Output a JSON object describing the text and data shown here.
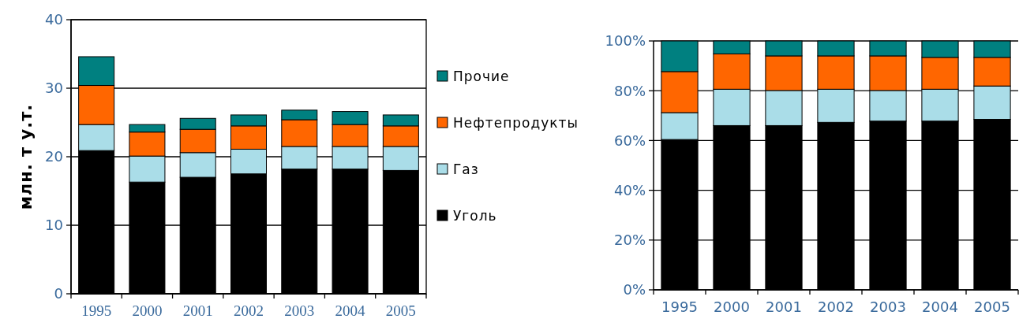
{
  "chart_data": [
    {
      "type": "bar",
      "stacked": true,
      "ylabel": "млн. т у.т.",
      "categories": [
        "1995",
        "2000",
        "2001",
        "2002",
        "2003",
        "2004",
        "2005"
      ],
      "ylim": [
        0,
        40
      ],
      "yticks": [
        0,
        10,
        20,
        30,
        40
      ],
      "grid": "y",
      "legend": "right",
      "series": [
        {
          "name": "Уголь",
          "color": "#000000",
          "values": [
            20.9,
            16.3,
            17.0,
            17.5,
            18.2,
            18.2,
            18.0
          ]
        },
        {
          "name": "Газ",
          "color": "#aadde8",
          "values": [
            3.8,
            3.8,
            3.6,
            3.6,
            3.3,
            3.3,
            3.5
          ]
        },
        {
          "name": "Нефтепродукты",
          "color": "#ff6600",
          "values": [
            5.7,
            3.5,
            3.4,
            3.4,
            3.9,
            3.2,
            3.0
          ]
        },
        {
          "name": "Прочие",
          "color": "#008080",
          "values": [
            4.2,
            1.1,
            1.6,
            1.6,
            1.4,
            1.9,
            1.6
          ]
        }
      ]
    },
    {
      "type": "bar",
      "stacked": true,
      "categories": [
        "1995",
        "2000",
        "2001",
        "2002",
        "2003",
        "2004",
        "2005"
      ],
      "ylim": [
        0,
        100
      ],
      "yticks": [
        {
          "value": 0,
          "label": "0%"
        },
        {
          "value": 20,
          "label": "20%"
        },
        {
          "value": 40,
          "label": "40%"
        },
        {
          "value": 60,
          "label": "60%"
        },
        {
          "value": 80,
          "label": "80%"
        },
        {
          "value": 100,
          "label": "100%"
        }
      ],
      "grid": "y",
      "series": [
        {
          "color": "#000000",
          "values": [
            60.4,
            66.0,
            66.0,
            67.3,
            67.8,
            67.8,
            68.5
          ]
        },
        {
          "color": "#aadde8",
          "values": [
            10.8,
            14.6,
            14.1,
            13.3,
            12.3,
            12.8,
            13.4
          ]
        },
        {
          "color": "#ff6600",
          "values": [
            16.5,
            14.2,
            13.9,
            13.4,
            13.9,
            12.8,
            11.5
          ]
        },
        {
          "color": "#008080",
          "values": [
            12.3,
            5.2,
            6.0,
            6.0,
            6.0,
            6.6,
            6.6
          ]
        }
      ]
    }
  ]
}
